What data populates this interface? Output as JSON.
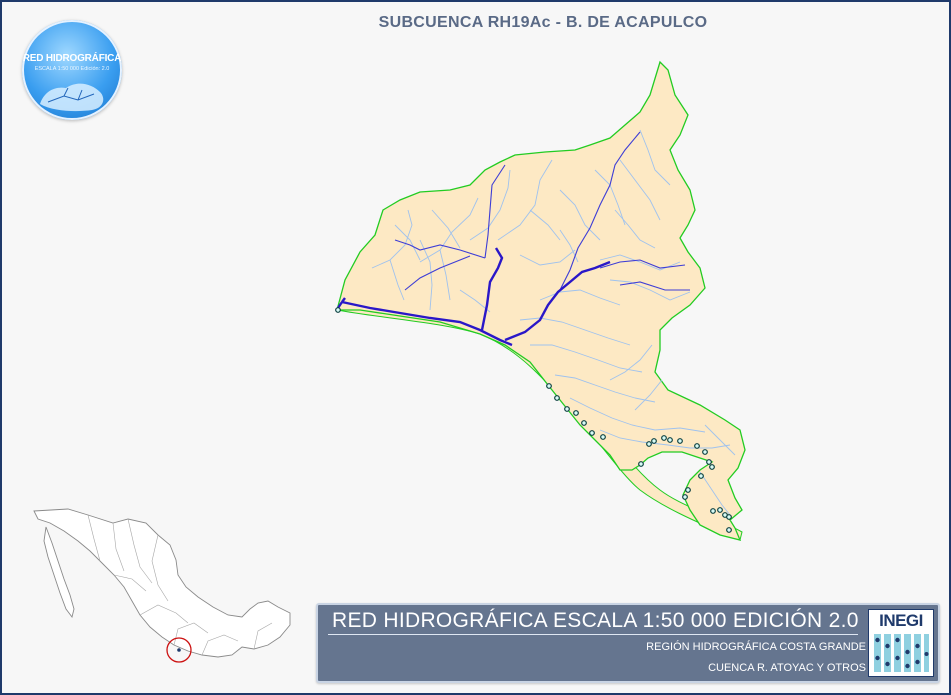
{
  "title": "SUBCUENCA RH19Ac - B. DE ACAPULCO",
  "logo": {
    "title": "RED HIDROGRÁFICA",
    "subtitle": "ESCALA 1:50 000  Edición: 2.0"
  },
  "banner": {
    "title": "RED HIDROGRÁFICA ESCALA 1:50 000 EDICIÓN 2.0",
    "region": "REGIÓN HIDROGRÁFICA COSTA GRANDE",
    "basin": "CUENCA R. ATOYAC Y OTROS",
    "agency_logo": "INEGI"
  },
  "colors": {
    "frame": "#1f3a6b",
    "basin_fill": "#fde9c4",
    "basin_outline": "#22cc22",
    "streams": "#9fc2ee",
    "main_rivers": "#3d3dd6",
    "principal_river": "#2a17c8",
    "outlets": "#0b3f3f",
    "banner": "#65758f",
    "inset_marker": "#cc1111"
  },
  "map": {
    "features": [
      "subbasin-polygon",
      "stream-network",
      "main-rivers",
      "coastal-outlets",
      "location-inset-mexico"
    ]
  }
}
